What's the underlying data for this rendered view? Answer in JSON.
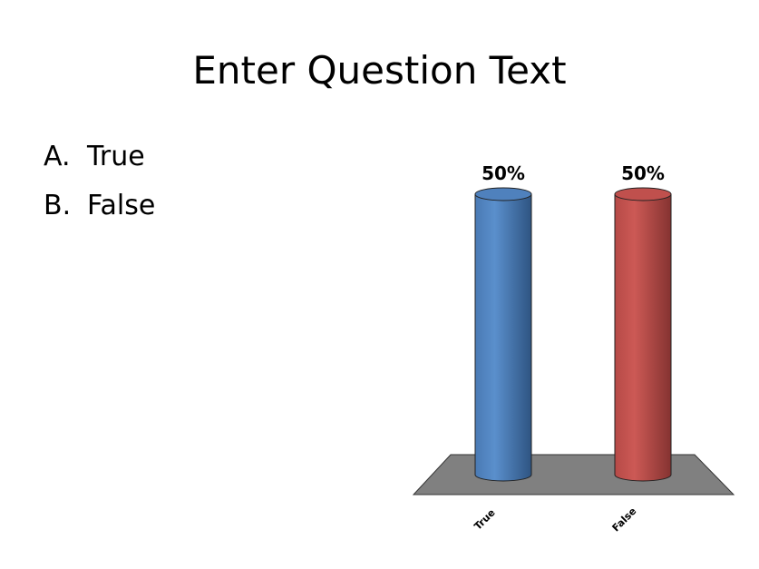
{
  "slide": {
    "title": "Enter Question Text"
  },
  "answers": [
    {
      "letter": "A.",
      "text": "True"
    },
    {
      "letter": "B.",
      "text": "False"
    }
  ],
  "chart_data": {
    "type": "bar",
    "categories": [
      "True",
      "False"
    ],
    "values": [
      50,
      50
    ],
    "value_format": "percent",
    "data_labels": [
      "50%",
      "50%"
    ],
    "ylim": [
      0,
      50
    ],
    "grid": false,
    "legend": "none",
    "style": "3d-cylinder",
    "colors": [
      "#4f81bd",
      "#c0504d"
    ],
    "floor_color": "#808080"
  }
}
